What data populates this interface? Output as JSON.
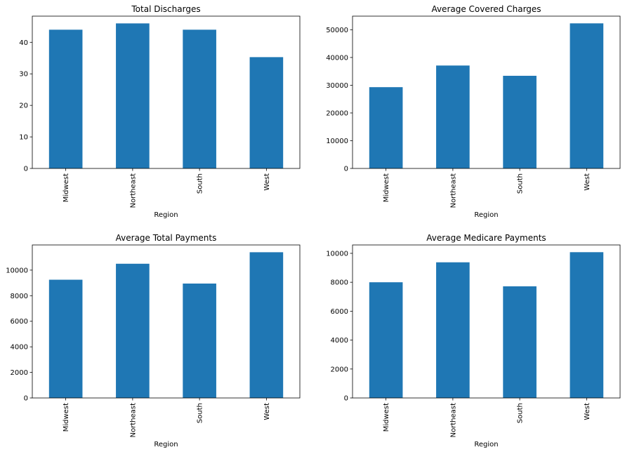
{
  "colors": {
    "bar": "#1f77b4",
    "axis": "#000000",
    "background": "#ffffff"
  },
  "chart_data": [
    {
      "type": "bar",
      "title": "Total Discharges",
      "xlabel": "Region",
      "ylabel": "",
      "categories": [
        "Midwest",
        "Northeast",
        "South",
        "West"
      ],
      "values": [
        44.0,
        46.0,
        44.0,
        35.3
      ],
      "ylim": [
        0,
        48.3
      ],
      "yticks": [
        0,
        10,
        20,
        30,
        40
      ],
      "ytick_labels": [
        "0",
        "10",
        "20",
        "30",
        "40"
      ]
    },
    {
      "type": "bar",
      "title": "Average Covered Charges",
      "xlabel": "Region",
      "ylabel": "",
      "categories": [
        "Midwest",
        "Northeast",
        "South",
        "West"
      ],
      "values": [
        29300,
        37100,
        33400,
        52300
      ],
      "ylim": [
        0,
        54900
      ],
      "yticks": [
        0,
        10000,
        20000,
        30000,
        40000,
        50000
      ],
      "ytick_labels": [
        "0",
        "10000",
        "20000",
        "30000",
        "40000",
        "50000"
      ]
    },
    {
      "type": "bar",
      "title": "Average Total Payments",
      "xlabel": "Region",
      "ylabel": "",
      "categories": [
        "Midwest",
        "Northeast",
        "South",
        "West"
      ],
      "values": [
        9250,
        10500,
        8950,
        11400
      ],
      "ylim": [
        0,
        11970
      ],
      "yticks": [
        0,
        2000,
        4000,
        6000,
        8000,
        10000
      ],
      "ytick_labels": [
        "0",
        "2000",
        "4000",
        "6000",
        "8000",
        "10000"
      ]
    },
    {
      "type": "bar",
      "title": "Average Medicare Payments",
      "xlabel": "Region",
      "ylabel": "",
      "categories": [
        "Midwest",
        "Northeast",
        "South",
        "West"
      ],
      "values": [
        8000,
        9380,
        7720,
        10080
      ],
      "ylim": [
        0,
        10580
      ],
      "yticks": [
        0,
        2000,
        4000,
        6000,
        8000,
        10000
      ],
      "ytick_labels": [
        "0",
        "2000",
        "4000",
        "6000",
        "8000",
        "10000"
      ]
    }
  ]
}
